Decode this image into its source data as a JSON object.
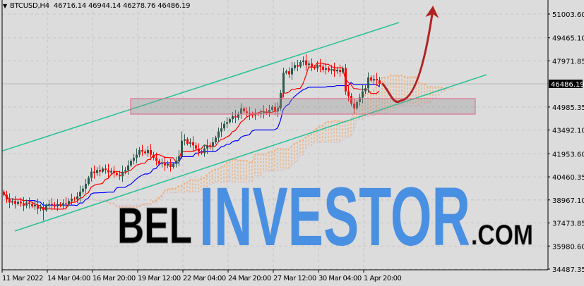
{
  "header": {
    "symbol": "BTCUSD,H4",
    "ohlc": "46716.14 46944.14 46278.76 46486.19"
  },
  "colors": {
    "background": "#dcdcdc",
    "grid": "#c4c4c4",
    "bull_candle": "#2e5a4b",
    "bear_candle": "#ff0000",
    "tenkan": "#ff0000",
    "kijun": "#0000ff",
    "cloud_up": "#f4a460",
    "cloud_down": "#d8bfd8",
    "channel": "#2cc29a",
    "zone_border": "#e07090",
    "projection": "#b22222",
    "logo_blue": "#4a90e2",
    "logo_black": "#000000"
  },
  "logo": {
    "part1": "BEL",
    "part2": "INVESTOR",
    "part3": ".COM"
  },
  "chart_data": {
    "type": "candlestick",
    "title": "",
    "indicators": [
      "Ichimoku Kinko Hyo"
    ],
    "timeframe": "H4",
    "grid": true,
    "current_price": 46486.19,
    "last_candle": {
      "open": 46716.14,
      "high": 46944.14,
      "low": 46278.76,
      "close": 46486.19
    },
    "y_ticks": [
      "51003.60",
      "49465.10",
      "47971.85",
      "44985.35",
      "43492.10",
      "41953.60",
      "40460.35",
      "38967.10",
      "37473.85",
      "35980.60",
      "34487.35"
    ],
    "y_range": [
      34487.35,
      51003.6
    ],
    "x_ticks": [
      "11 Mar 2022",
      "14 Mar 04:00",
      "16 Mar 20:00",
      "19 Mar 12:00",
      "22 Mar 04:00",
      "24 Mar 20:00",
      "27 Mar 12:00",
      "30 Mar 04:00",
      "1 Apr 20:00"
    ],
    "x_tick_every_bars": 16,
    "closes": [
      39300,
      39000,
      38800,
      38900,
      38700,
      38850,
      38750,
      38600,
      38800,
      38700,
      38550,
      38650,
      38400,
      38500,
      38300,
      38600,
      38700,
      38650,
      38550,
      38700,
      38600,
      38750,
      38700,
      38900,
      39050,
      39000,
      39200,
      39500,
      39700,
      40000,
      40400,
      40800,
      40700,
      40900,
      40800,
      41000,
      40900,
      40750,
      40850,
      40700,
      40600,
      40500,
      40800,
      40900,
      41200,
      41500,
      41700,
      41900,
      42200,
      42100,
      42000,
      42200,
      41900,
      41700,
      41500,
      41300,
      41400,
      41200,
      41300,
      41100,
      41300,
      41500,
      41800,
      42800,
      42900,
      42600,
      42700,
      42500,
      42300,
      42100,
      42000,
      42300,
      42500,
      42400,
      42700,
      43000,
      43400,
      43600,
      43900,
      44000,
      44200,
      44400,
      44300,
      44500,
      44900,
      44700,
      44600,
      44500,
      44450,
      44550,
      44500,
      44600,
      44700,
      44650,
      44800,
      45000,
      44700,
      44900,
      45900,
      47200,
      47300,
      47100,
      47500,
      47700,
      47600,
      47900,
      48000,
      47700,
      47800,
      47600,
      47500,
      47700,
      47600,
      47400,
      47500,
      47350,
      47450,
      47300,
      47400,
      47250,
      47500,
      46000,
      45700,
      45200,
      44900,
      45300,
      45600,
      46000,
      46200,
      46900,
      46700,
      46800,
      46716.14,
      46486.19
    ],
    "zone": {
      "price_low": 44525,
      "price_high": 45530,
      "from_bar": 45,
      "to_bar": 167
    },
    "channel_upper": [
      [
        -1,
        42108
      ],
      [
        140,
        50456
      ]
    ],
    "channel_lower": [
      [
        4,
        36953
      ],
      [
        171,
        47080
      ]
    ],
    "projection": [
      [
        134,
        46532
      ],
      [
        140.5,
        45392
      ],
      [
        152,
        51460
      ]
    ]
  }
}
